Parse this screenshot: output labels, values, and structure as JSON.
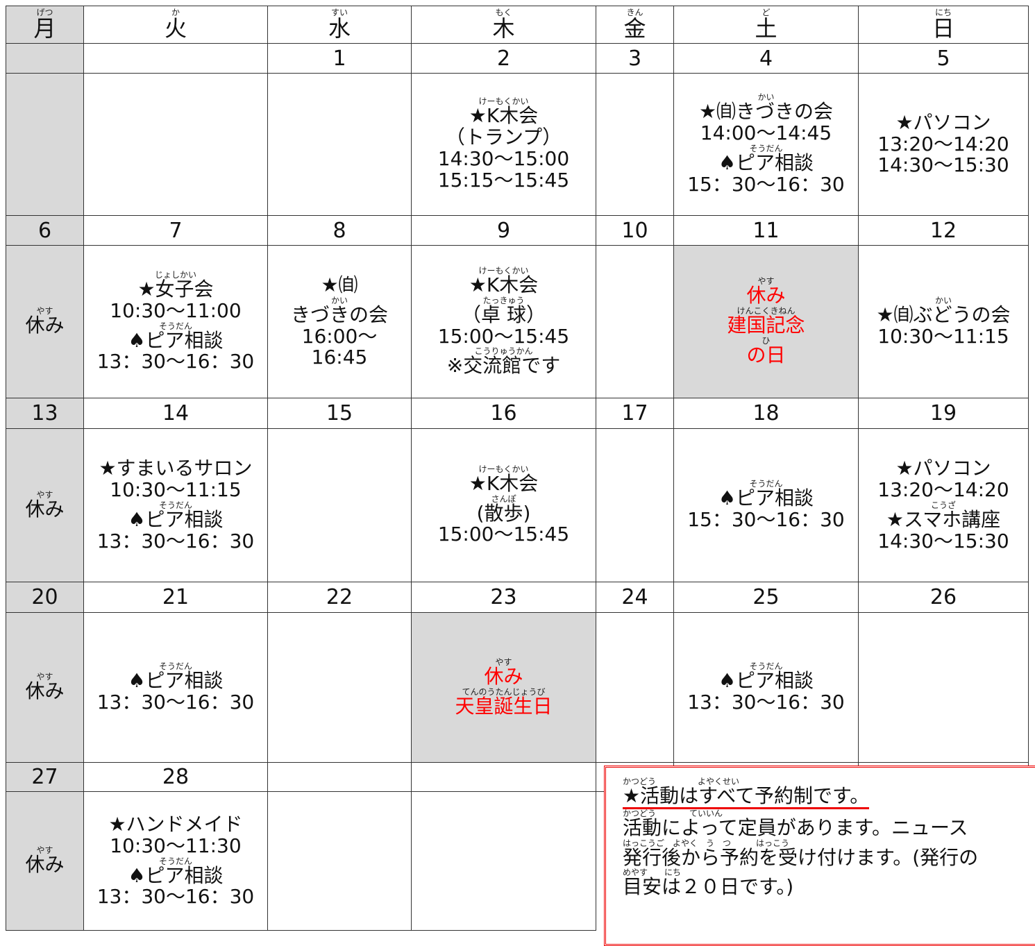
{
  "days": [
    {
      "text": "月",
      "ruby": "げつ"
    },
    {
      "text": "火",
      "ruby": "か"
    },
    {
      "text": "水",
      "ruby": "すい"
    },
    {
      "text": "木",
      "ruby": "もく"
    },
    {
      "text": "金",
      "ruby": "きん"
    },
    {
      "text": "土",
      "ruby": "ど"
    },
    {
      "text": "日",
      "ruby": "にち"
    }
  ],
  "weeks": [
    {
      "dates": [
        null,
        null,
        1,
        2,
        3,
        4,
        5
      ],
      "cells": [
        {
          "shaded": true,
          "lines": []
        },
        {
          "lines": []
        },
        {
          "lines": []
        },
        {
          "lines": [
            {
              "text": "★K木会",
              "ruby": "けーもくかい"
            },
            {
              "text": "（トランプ）"
            },
            {
              "text": "14:30～15:00"
            },
            {
              "text": "15:15～15:45"
            }
          ]
        },
        {
          "lines": []
        },
        {
          "lines": [
            {
              "text": "★㉂きづきの会",
              "ruby": "かい"
            },
            {
              "text": "14:00～14:45"
            },
            {
              "text": "♠ピア相談",
              "ruby": "そうだん"
            },
            {
              "text": "15：30～16：30"
            }
          ]
        },
        {
          "lines": [
            {
              "text": "★パソコン"
            },
            {
              "text": "13:20～14:20"
            },
            {
              "text": "14:30～15:30"
            }
          ]
        }
      ]
    },
    {
      "dates": [
        6,
        7,
        8,
        9,
        10,
        11,
        12
      ],
      "cells": [
        {
          "shaded": true,
          "lines": [
            {
              "text": "休み",
              "ruby": "やす"
            }
          ]
        },
        {
          "lines": [
            {
              "text": "★女子会",
              "ruby": "じょしかい"
            },
            {
              "text": "10:30～11:00"
            },
            {
              "text": "♠ピア相談",
              "ruby": "そうだん"
            },
            {
              "text": "13：30～16：30"
            }
          ]
        },
        {
          "lines": [
            {
              "text": "★㉂"
            },
            {
              "text": "きづきの会",
              "ruby": "かい"
            },
            {
              "text": "16:00～"
            },
            {
              "text": "16:45"
            }
          ]
        },
        {
          "lines": [
            {
              "text": "★K木会",
              "ruby": "けーもくかい"
            },
            {
              "text": "（卓 球）",
              "ruby": "たっきゅう"
            },
            {
              "text": "15:00～15:45"
            },
            {
              "text": "※交流館です",
              "ruby": "こうりゅうかん"
            }
          ]
        },
        {
          "lines": []
        },
        {
          "shaded": true,
          "lines": [
            {
              "text": "休み",
              "ruby": "やす",
              "color": "#ff0000"
            },
            {
              "text": "建国記念",
              "ruby": "けんこくきねん",
              "color": "#ff0000"
            },
            {
              "text": "の日",
              "ruby": "ひ",
              "color": "#ff0000"
            }
          ]
        },
        {
          "lines": [
            {
              "text": "★㉂ぶどうの会",
              "ruby": "かい"
            },
            {
              "text": "10:30～11:15"
            }
          ]
        }
      ]
    },
    {
      "dates": [
        13,
        14,
        15,
        16,
        17,
        18,
        19
      ],
      "cells": [
        {
          "shaded": true,
          "lines": [
            {
              "text": "休み",
              "ruby": "やす"
            }
          ]
        },
        {
          "lines": [
            {
              "text": "★すまいるサロン"
            },
            {
              "text": "10:30～11:15"
            },
            {
              "text": "♠ピア相談",
              "ruby": "そうだん"
            },
            {
              "text": "13：30～16：30"
            }
          ]
        },
        {
          "lines": []
        },
        {
          "lines": [
            {
              "text": "★K木会",
              "ruby": "けーもくかい"
            },
            {
              "text": "(散歩)",
              "ruby": "さんぽ"
            },
            {
              "text": "15:00～15:45"
            }
          ]
        },
        {
          "lines": []
        },
        {
          "lines": [
            {
              "text": "♠ピア相談",
              "ruby": "そうだん"
            },
            {
              "text": "15：30～16：30"
            }
          ]
        },
        {
          "lines": [
            {
              "text": "★パソコン"
            },
            {
              "text": "13:20～14:20"
            },
            {
              "text": "★スマホ講座",
              "ruby": "こうざ"
            },
            {
              "text": "14:30～15:30"
            }
          ]
        }
      ]
    },
    {
      "dates": [
        20,
        21,
        22,
        23,
        24,
        25,
        26
      ],
      "cells": [
        {
          "shaded": true,
          "lines": [
            {
              "text": "休み",
              "ruby": "やす"
            }
          ]
        },
        {
          "lines": [
            {
              "text": "♠ピア相談",
              "ruby": "そうだん"
            },
            {
              "text": "13：30～16：30"
            }
          ]
        },
        {
          "lines": []
        },
        {
          "shaded": true,
          "lines": [
            {
              "text": "休み",
              "ruby": "やす",
              "color": "#ff0000"
            },
            {
              "text": "天皇誕生日",
              "ruby": "てんのうたんじょうび",
              "color": "#ff0000"
            }
          ]
        },
        {
          "lines": []
        },
        {
          "lines": [
            {
              "text": "♠ピア相談",
              "ruby": "そうだん"
            },
            {
              "text": "13：30～16：30"
            }
          ]
        },
        {
          "lines": []
        }
      ]
    },
    {
      "dates": [
        27,
        28,
        null,
        null,
        null,
        null,
        null
      ],
      "cells": [
        {
          "shaded": true,
          "lines": [
            {
              "text": "休み",
              "ruby": "やす"
            }
          ]
        },
        {
          "lines": [
            {
              "text": "★ハンドメイド"
            },
            {
              "text": "10:30～11:30"
            },
            {
              "text": "♠ピア相談",
              "ruby": "そうだん"
            },
            {
              "text": "13：30～16：30"
            }
          ]
        },
        {
          "lines": []
        },
        {
          "lines": []
        }
      ]
    }
  ],
  "note": {
    "lines": [
      {
        "text": "★活動はすべて予約制です。",
        "ruby": "かつどう　　　　　よやくせい"
      },
      {
        "text": "活動によって定員があります。ニュース",
        "ruby": "かつどう　　　　ていいん"
      },
      {
        "text": "発行後から予約を受け付けます。(発行の",
        "ruby": "はっこうご　よやく　う　つ　　　はっこう"
      },
      {
        "text": "目安は２０日です。)",
        "ruby": "めやす　　にち"
      }
    ]
  }
}
